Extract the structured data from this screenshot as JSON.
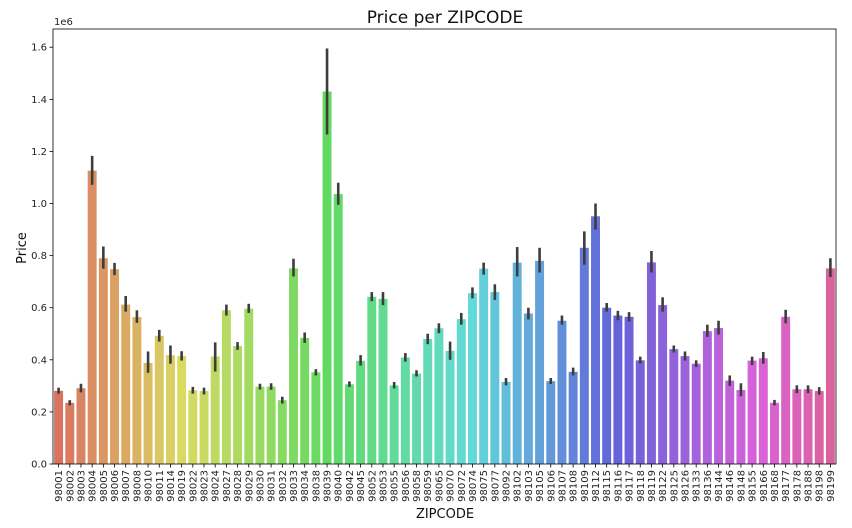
{
  "chart_data": {
    "type": "bar",
    "title": "Price per ZIPCODE",
    "xlabel": "ZIPCODE",
    "ylabel": "Price",
    "y_multiplier_label": "1e6",
    "ylim": [
      0,
      1.67
    ],
    "yticks": [
      "0.0",
      "0.2",
      "0.4",
      "0.6",
      "0.8",
      "1.0",
      "1.2",
      "1.4",
      "1.6"
    ],
    "ytick_values": [
      0,
      0.2,
      0.4,
      0.6,
      0.8,
      1.0,
      1.2,
      1.4,
      1.6
    ],
    "grid": false,
    "categories": [
      "98001",
      "98002",
      "98003",
      "98004",
      "98005",
      "98006",
      "98007",
      "98008",
      "98010",
      "98011",
      "98014",
      "98019",
      "98022",
      "98023",
      "98024",
      "98027",
      "98028",
      "98029",
      "98030",
      "98031",
      "98032",
      "98033",
      "98034",
      "98038",
      "98039",
      "98040",
      "98042",
      "98045",
      "98052",
      "98053",
      "98055",
      "98056",
      "98058",
      "98059",
      "98065",
      "98070",
      "98072",
      "98074",
      "98075",
      "98077",
      "98092",
      "98102",
      "98103",
      "98105",
      "98106",
      "98107",
      "98108",
      "98109",
      "98112",
      "98115",
      "98116",
      "98117",
      "98118",
      "98119",
      "98122",
      "98125",
      "98126",
      "98133",
      "98136",
      "98144",
      "98146",
      "98148",
      "98155",
      "98166",
      "98168",
      "98177",
      "98178",
      "98188",
      "98198",
      "98199"
    ],
    "values": [
      0.281,
      0.235,
      0.291,
      1.126,
      0.79,
      0.748,
      0.612,
      0.564,
      0.388,
      0.492,
      0.418,
      0.415,
      0.283,
      0.28,
      0.413,
      0.59,
      0.453,
      0.596,
      0.297,
      0.297,
      0.245,
      0.751,
      0.484,
      0.352,
      1.43,
      1.036,
      0.306,
      0.396,
      0.642,
      0.634,
      0.302,
      0.409,
      0.347,
      0.48,
      0.521,
      0.434,
      0.556,
      0.656,
      0.75,
      0.66,
      0.315,
      0.773,
      0.578,
      0.78,
      0.318,
      0.55,
      0.354,
      0.83,
      0.951,
      0.6,
      0.57,
      0.565,
      0.398,
      0.774,
      0.61,
      0.441,
      0.414,
      0.385,
      0.51,
      0.522,
      0.32,
      0.284,
      0.397,
      0.406,
      0.235,
      0.565,
      0.287,
      0.287,
      0.28,
      0.751
    ],
    "err_low": [
      0.27,
      0.225,
      0.275,
      1.072,
      0.75,
      0.725,
      0.585,
      0.542,
      0.35,
      0.47,
      0.385,
      0.397,
      0.27,
      0.267,
      0.355,
      0.57,
      0.438,
      0.58,
      0.286,
      0.285,
      0.232,
      0.72,
      0.465,
      0.34,
      1.265,
      0.995,
      0.296,
      0.378,
      0.625,
      0.61,
      0.29,
      0.393,
      0.336,
      0.46,
      0.502,
      0.4,
      0.535,
      0.636,
      0.727,
      0.63,
      0.302,
      0.72,
      0.555,
      0.735,
      0.307,
      0.535,
      0.34,
      0.765,
      0.9,
      0.585,
      0.552,
      0.547,
      0.386,
      0.735,
      0.585,
      0.428,
      0.397,
      0.372,
      0.488,
      0.497,
      0.3,
      0.26,
      0.38,
      0.385,
      0.225,
      0.54,
      0.272,
      0.272,
      0.266,
      0.718
    ],
    "err_high": [
      0.293,
      0.245,
      0.308,
      1.183,
      0.835,
      0.772,
      0.645,
      0.59,
      0.432,
      0.515,
      0.455,
      0.433,
      0.296,
      0.293,
      0.467,
      0.612,
      0.468,
      0.615,
      0.308,
      0.31,
      0.258,
      0.788,
      0.505,
      0.364,
      1.595,
      1.08,
      0.317,
      0.418,
      0.66,
      0.66,
      0.315,
      0.426,
      0.36,
      0.5,
      0.54,
      0.47,
      0.58,
      0.678,
      0.773,
      0.69,
      0.33,
      0.833,
      0.6,
      0.83,
      0.33,
      0.57,
      0.37,
      0.893,
      1.0,
      0.618,
      0.588,
      0.583,
      0.412,
      0.818,
      0.64,
      0.455,
      0.432,
      0.398,
      0.535,
      0.55,
      0.34,
      0.31,
      0.412,
      0.43,
      0.246,
      0.592,
      0.302,
      0.302,
      0.295,
      0.79
    ]
  }
}
